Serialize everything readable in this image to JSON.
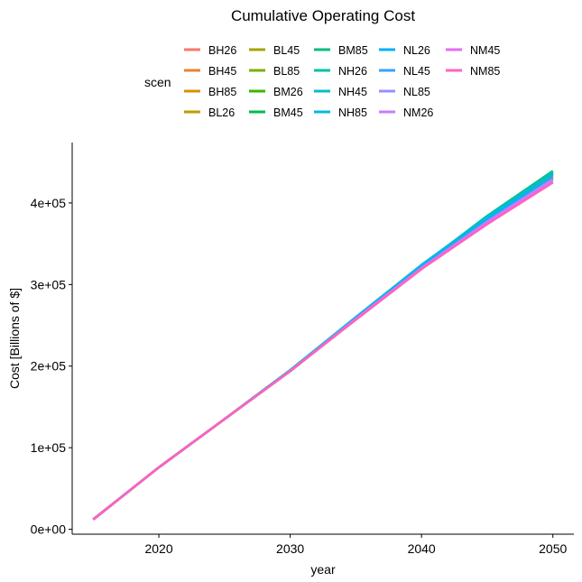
{
  "chart_data": {
    "type": "line",
    "title": "Cumulative Operating Cost",
    "xlabel": "year",
    "ylabel": "Cost [Billions of $]",
    "xlim": [
      2015,
      2050
    ],
    "ylim": [
      0,
      450000
    ],
    "x_ticks": [
      2020,
      2030,
      2040,
      2050
    ],
    "y_ticks": [
      0,
      100000,
      200000,
      300000,
      400000
    ],
    "y_tick_labels": [
      "0e+00",
      "1e+05",
      "2e+05",
      "3e+05",
      "4e+05"
    ],
    "grid": false,
    "legend": {
      "title": "scen",
      "placement": "top"
    },
    "x": [
      2015,
      2020,
      2025,
      2030,
      2035,
      2040,
      2045,
      2050
    ],
    "series": [
      {
        "name": "BH26",
        "color": "#F8766D",
        "values": [
          12000,
          76000,
          135000,
          194000,
          258000,
          320000,
          378000,
          432000
        ]
      },
      {
        "name": "BH45",
        "color": "#EA8331",
        "values": [
          12000,
          76000,
          135000,
          194000,
          258000,
          320000,
          378000,
          433000
        ]
      },
      {
        "name": "BH85",
        "color": "#D89000",
        "values": [
          12000,
          76000,
          135000,
          194000,
          258000,
          320000,
          379000,
          434000
        ]
      },
      {
        "name": "BL26",
        "color": "#C09B00",
        "values": [
          12000,
          76000,
          135000,
          194000,
          258000,
          321000,
          380000,
          434000
        ]
      },
      {
        "name": "BL45",
        "color": "#A3A500",
        "values": [
          12000,
          76000,
          135000,
          194000,
          258000,
          321000,
          381000,
          435000
        ]
      },
      {
        "name": "BL85",
        "color": "#7CAE00",
        "values": [
          12000,
          76000,
          135000,
          194000,
          259000,
          322000,
          382000,
          436000
        ]
      },
      {
        "name": "BM26",
        "color": "#39B600",
        "values": [
          12000,
          76000,
          135000,
          194000,
          259000,
          322000,
          383000,
          437000
        ]
      },
      {
        "name": "BM45",
        "color": "#00BB4E",
        "values": [
          12000,
          76000,
          135000,
          195000,
          259000,
          323000,
          384000,
          439000
        ]
      },
      {
        "name": "BM85",
        "color": "#00BF7D",
        "values": [
          12000,
          76000,
          135000,
          195000,
          259000,
          323000,
          384000,
          439000
        ]
      },
      {
        "name": "NH26",
        "color": "#00C1A3",
        "values": [
          12000,
          76000,
          135000,
          195000,
          259000,
          323000,
          383000,
          438000
        ]
      },
      {
        "name": "NH45",
        "color": "#00BFC4",
        "values": [
          12000,
          76000,
          135000,
          195000,
          260000,
          324000,
          383000,
          436000
        ]
      },
      {
        "name": "NH85",
        "color": "#00BAE0",
        "values": [
          12000,
          76000,
          135000,
          195000,
          260000,
          324000,
          382000,
          435000
        ]
      },
      {
        "name": "NL26",
        "color": "#00B0F6",
        "values": [
          12000,
          76000,
          135000,
          194000,
          259000,
          322000,
          379000,
          431000
        ]
      },
      {
        "name": "NL45",
        "color": "#35A2FF",
        "values": [
          12000,
          76000,
          135000,
          194000,
          258000,
          321000,
          378000,
          430000
        ]
      },
      {
        "name": "NL85",
        "color": "#9590FF",
        "values": [
          12000,
          76000,
          135000,
          194000,
          258000,
          320000,
          377000,
          429000
        ]
      },
      {
        "name": "NM26",
        "color": "#C77CFF",
        "values": [
          12000,
          76000,
          135000,
          194000,
          258000,
          320000,
          376000,
          428000
        ]
      },
      {
        "name": "NM45",
        "color": "#E76BF3",
        "values": [
          12000,
          76000,
          135000,
          194000,
          257000,
          319000,
          375000,
          426000
        ]
      },
      {
        "name": "NM85",
        "color": "#FF62BC",
        "values": [
          12000,
          76000,
          135000,
          194000,
          257000,
          319000,
          374000,
          425000
        ]
      }
    ]
  }
}
